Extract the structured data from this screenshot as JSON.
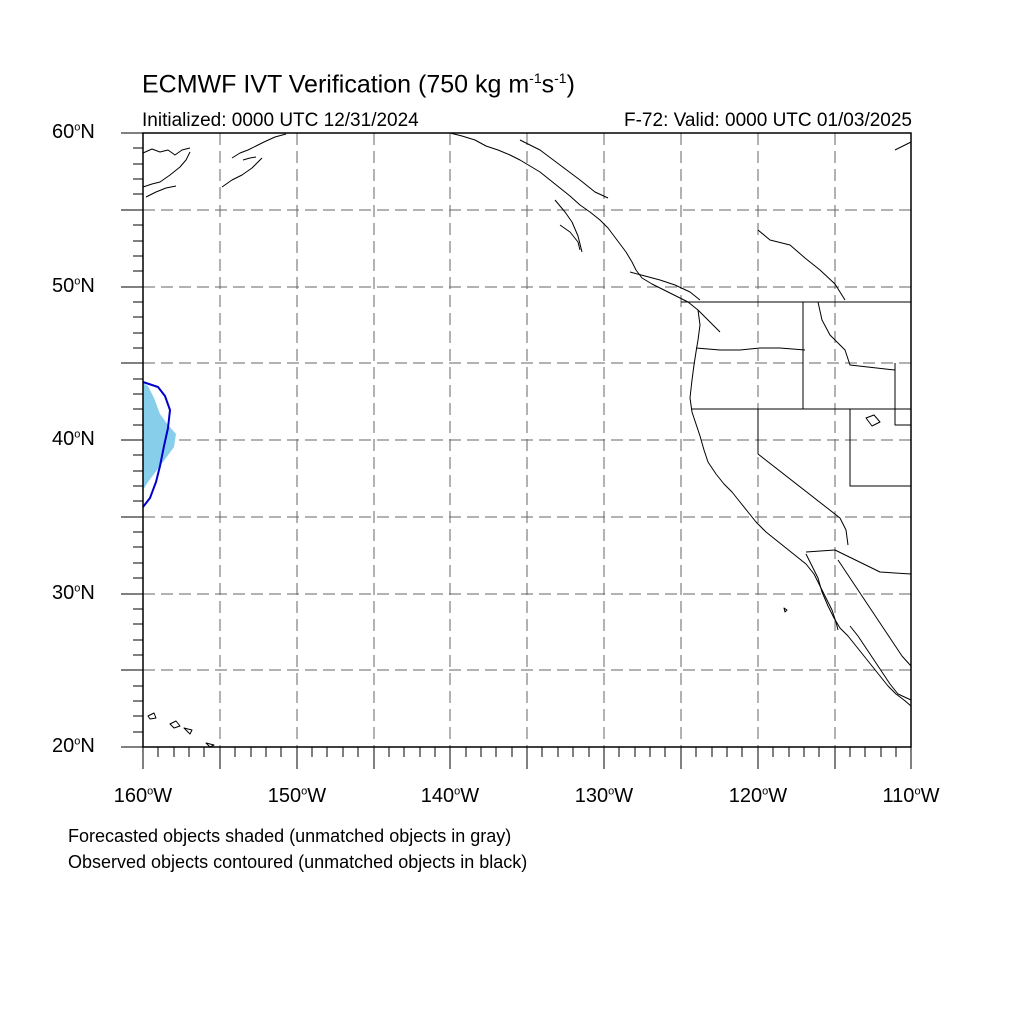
{
  "title": {
    "prefix": "ECMWF IVT Verification (750 kg m",
    "exp1": "-1",
    "mid": "s",
    "exp2": "-1",
    "suffix": ")"
  },
  "subtitle_left": "Initialized: 0000 UTC 12/31/2024",
  "subtitle_right": "F-72: Valid: 0000 UTC 01/03/2025",
  "axes": {
    "lat_labels": [
      {
        "num": "60",
        "hemi": "N"
      },
      {
        "num": "50",
        "hemi": "N"
      },
      {
        "num": "40",
        "hemi": "N"
      },
      {
        "num": "30",
        "hemi": "N"
      },
      {
        "num": "20",
        "hemi": "N"
      }
    ],
    "lon_labels": [
      {
        "num": "160",
        "hemi": "W"
      },
      {
        "num": "150",
        "hemi": "W"
      },
      {
        "num": "140",
        "hemi": "W"
      },
      {
        "num": "130",
        "hemi": "W"
      },
      {
        "num": "120",
        "hemi": "W"
      },
      {
        "num": "110",
        "hemi": "W"
      }
    ],
    "degree_symbol": "o",
    "lat_range": [
      20,
      60
    ],
    "lon_range": [
      -160,
      -110
    ],
    "grid_spacing_deg": 5
  },
  "captions": [
    "Forecasted objects shaded (unmatched objects in gray)",
    "Observed objects contoured (unmatched objects in black)"
  ],
  "colors": {
    "forecast_fill": "#87ceeb",
    "observed_contour": "#0000cd",
    "grid": "#666666",
    "coastline": "#000000"
  }
}
